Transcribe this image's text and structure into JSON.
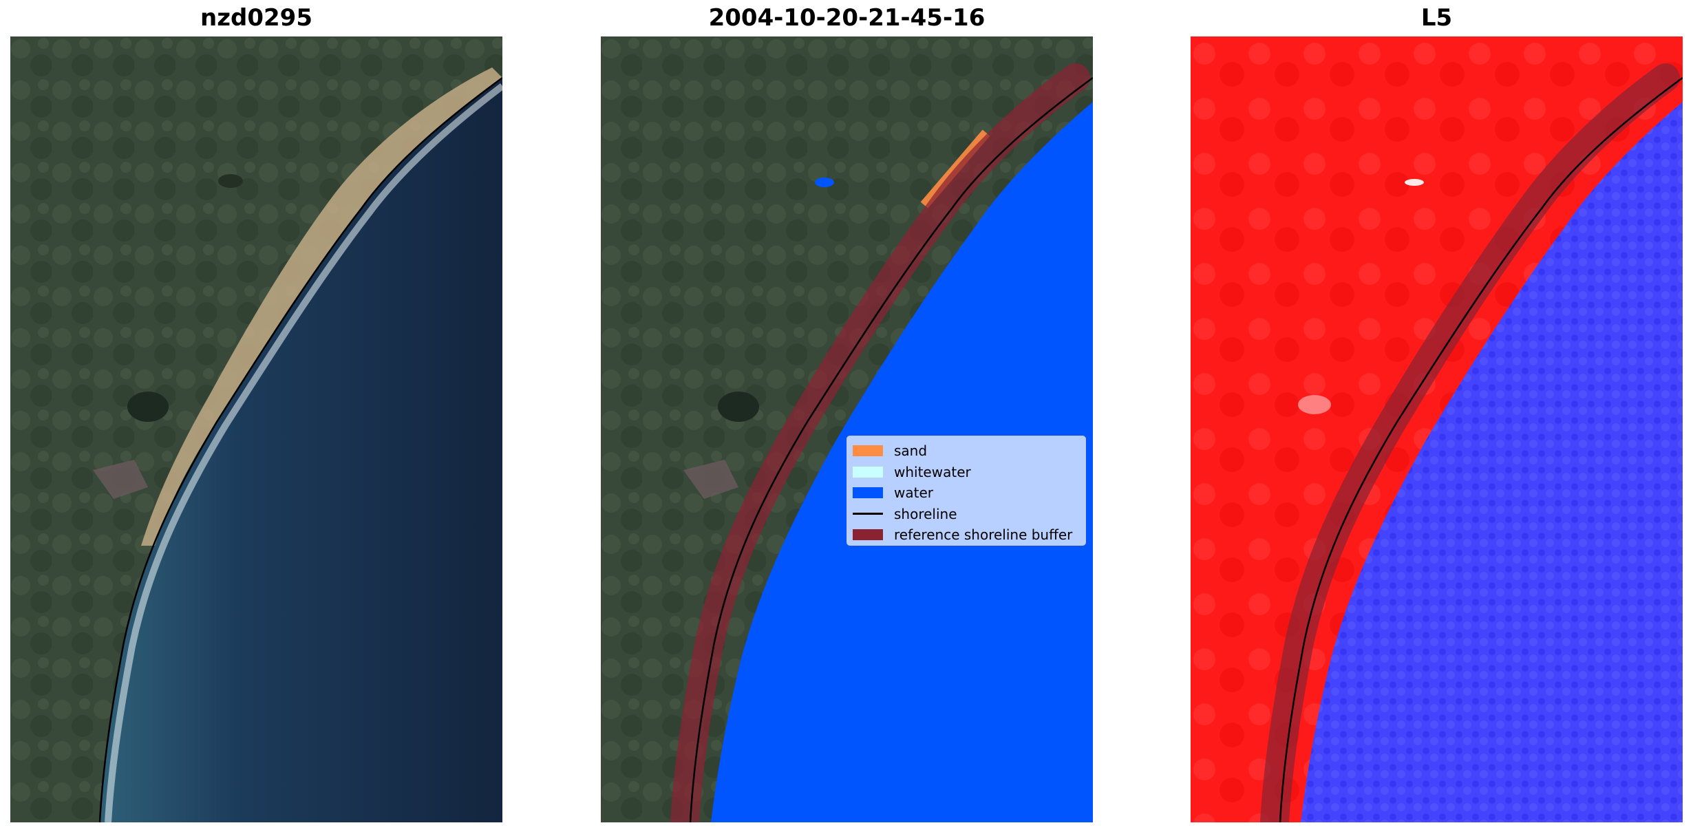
{
  "panels": [
    {
      "title": "nzd0295"
    },
    {
      "title": "2004-10-20-21-45-16"
    },
    {
      "title": "L5"
    }
  ],
  "legend": {
    "items": [
      {
        "label": "sand",
        "color": "#ff8c42",
        "kind": "patch"
      },
      {
        "label": "whitewater",
        "color": "#c8ffff",
        "kind": "patch"
      },
      {
        "label": "water",
        "color": "#0055ff",
        "kind": "patch"
      },
      {
        "label": "shoreline",
        "color": "#000000",
        "kind": "line"
      },
      {
        "label": "reference shoreline buffer",
        "color": "#8b2232",
        "kind": "patch"
      }
    ]
  },
  "colors": {
    "land": "#3b4a3a",
    "ocean_deep": "#16294a",
    "ocean_near": "#2a5a7a",
    "beach": "#cdb38c",
    "classified_water": "#0055ff",
    "buffer": "#8b2232",
    "index_land": "#ff1a1a",
    "index_water": "#3b3bff"
  }
}
